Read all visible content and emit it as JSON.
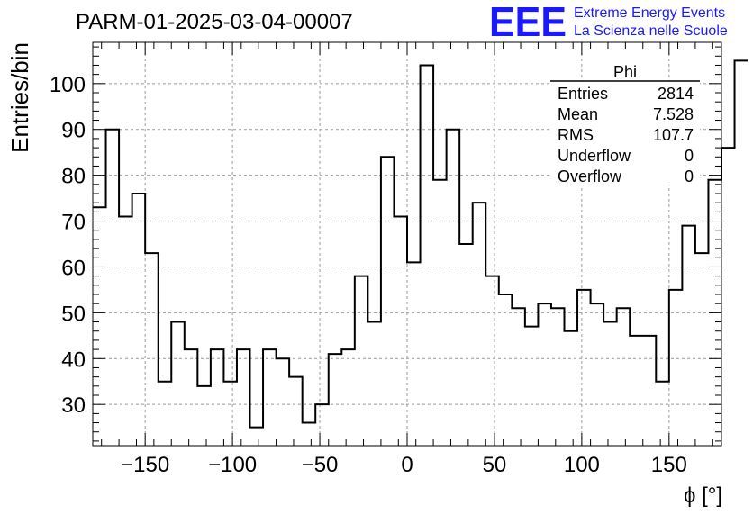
{
  "page": {
    "title": "PARM-01-2025-03-04-00007",
    "logo": {
      "letters": "EEE",
      "line1": "Extreme Energy Events",
      "line2": "La Scienza nelle Scuole",
      "color": "#1a1aff"
    }
  },
  "stats": {
    "name": "Phi",
    "rows": [
      {
        "label": "Entries",
        "value": "2814"
      },
      {
        "label": "Mean",
        "value": "7.528"
      },
      {
        "label": "RMS",
        "value": "107.7"
      },
      {
        "label": "Underflow",
        "value": "0"
      },
      {
        "label": "Overflow",
        "value": "0"
      }
    ]
  },
  "chart_data": {
    "type": "histogram",
    "title": "PARM-01-2025-03-04-00007",
    "xlabel": "ϕ [°]",
    "ylabel": "Entries/bin",
    "xlim": [
      -180,
      180
    ],
    "ylim": [
      21,
      109
    ],
    "xticks": [
      -150,
      -100,
      -50,
      0,
      50,
      100,
      150
    ],
    "yticks": [
      30,
      40,
      50,
      60,
      70,
      80,
      90,
      100
    ],
    "grid": true,
    "bin_width": 7.5,
    "bin_edges_start": -180,
    "values": [
      73,
      90,
      71,
      76,
      63,
      35,
      48,
      42,
      34,
      42,
      35,
      42,
      25,
      42,
      40,
      36,
      26,
      30,
      41,
      42,
      58,
      48,
      84,
      71,
      61,
      104,
      79,
      90,
      65,
      74,
      58,
      54,
      51,
      47,
      52,
      51,
      46,
      55,
      52,
      48,
      51,
      45,
      45,
      35,
      55,
      69,
      63,
      79,
      86,
      105
    ]
  }
}
